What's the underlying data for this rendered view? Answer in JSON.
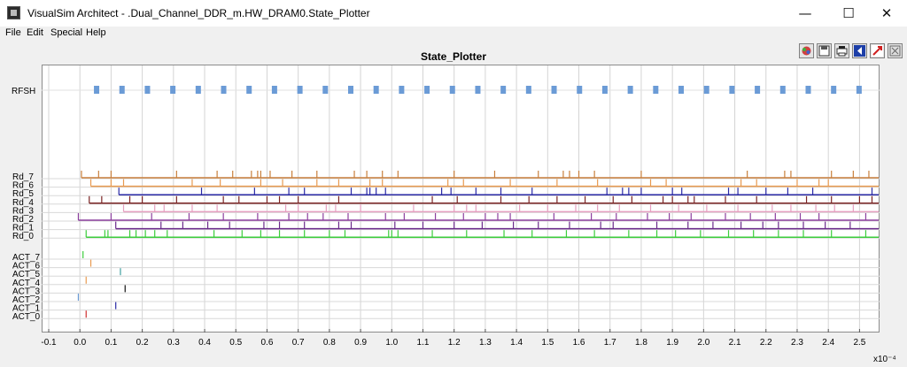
{
  "window": {
    "title": "VisualSim Architect - .Dual_Channel_DDR_m.HW_DRAM0.State_Plotter",
    "minimize": "—",
    "maximize": "☐",
    "close": "✕"
  },
  "menu": [
    "File",
    "Edit",
    "Special",
    "Help"
  ],
  "toolbar": {
    "buttons": [
      "palette-icon",
      "save-icon",
      "print-icon",
      "reset-axes-icon",
      "zoom-fit-icon",
      "fill-icon"
    ]
  },
  "plot": {
    "title": "State_Plotter",
    "exponent_label": "x10⁻⁴"
  },
  "chart_data": {
    "type": "event-plot",
    "title": "State_Plotter",
    "xlabel": "",
    "ylabel": "",
    "x_scale_label": "x10⁻⁴",
    "xlim": [
      -0.1,
      2.55
    ],
    "x_ticks": [
      "-0.1",
      "0.0",
      "0.1",
      "0.2",
      "0.3",
      "0.4",
      "0.5",
      "0.6",
      "0.7",
      "0.8",
      "0.9",
      "1.0",
      "1.1",
      "1.2",
      "1.3",
      "1.4",
      "1.5",
      "1.6",
      "1.7",
      "1.8",
      "1.9",
      "2.0",
      "2.1",
      "2.2",
      "2.3",
      "2.4",
      "2.5"
    ],
    "grid": true,
    "refresh": {
      "label": "RFSH",
      "color": "#6b9bd6",
      "start": 0.045,
      "period": 0.0815,
      "end": 2.54
    },
    "series": [
      {
        "label": "Rd_7",
        "color": "#c87f3c",
        "start": 0.005,
        "events": [
          0.005,
          0.06,
          0.1,
          0.31,
          0.44,
          0.49,
          0.55,
          0.57,
          0.58,
          0.61,
          0.68,
          0.76,
          0.88,
          0.92,
          0.97,
          1.02,
          1.2,
          1.33,
          1.47,
          1.55,
          1.57,
          1.6,
          1.65,
          1.8,
          2.14,
          2.26,
          2.28,
          2.41,
          2.48,
          2.53
        ]
      },
      {
        "label": "Rd_6",
        "color": "#e89a50",
        "start": 0.035,
        "events": [
          0.035,
          0.1,
          0.14,
          0.36,
          0.45,
          0.58,
          0.65,
          0.76,
          0.83,
          0.93,
          0.97,
          1.18,
          1.23,
          1.38,
          1.53,
          1.66,
          1.83,
          1.88,
          2.12,
          2.17,
          2.3,
          2.37,
          2.4
        ]
      },
      {
        "label": "Rd_5",
        "color": "#2a2aa6",
        "start": 0.125,
        "events": [
          0.125,
          0.39,
          0.56,
          0.67,
          0.72,
          0.87,
          0.92,
          0.93,
          0.95,
          0.98,
          1.16,
          1.19,
          1.27,
          1.35,
          1.45,
          1.69,
          1.74,
          1.76,
          1.8,
          1.9,
          1.93,
          2.08,
          2.11,
          2.2,
          2.27,
          2.35,
          2.54
        ]
      },
      {
        "label": "Rd_4",
        "color": "#7a2424",
        "start": 0.03,
        "events": [
          0.03,
          0.07,
          0.16,
          0.2,
          0.31,
          0.46,
          0.51,
          0.6,
          0.64,
          0.7,
          0.83,
          1.13,
          1.21,
          1.35,
          1.44,
          1.53,
          1.62,
          1.71,
          1.77,
          1.87,
          1.9,
          1.95,
          1.97,
          2.07,
          2.17,
          2.33,
          2.41,
          2.5,
          2.54
        ]
      },
      {
        "label": "Rd_3",
        "color": "#e6a0c0",
        "start": 0.14,
        "events": [
          0.14,
          0.24,
          0.27,
          0.36,
          0.44,
          0.66,
          0.7,
          0.79,
          0.82,
          0.9,
          1.07,
          1.2,
          1.24,
          1.27,
          1.41,
          1.5,
          1.59,
          1.66,
          1.73,
          1.83,
          1.92,
          2.01,
          2.11,
          2.22,
          2.28,
          2.36,
          2.42,
          2.48
        ]
      },
      {
        "label": "Rd_2",
        "color": "#8c3f9e",
        "start": -0.005,
        "events": [
          -0.005,
          0.1,
          0.23,
          0.35,
          0.46,
          0.57,
          0.67,
          0.73,
          0.78,
          0.86,
          0.98,
          1.04,
          1.14,
          1.23,
          1.3,
          1.34,
          1.38,
          1.52,
          1.64,
          1.72,
          1.82,
          1.89,
          1.96,
          2.07,
          2.15,
          2.23,
          2.31,
          2.37,
          2.52
        ]
      },
      {
        "label": "Rd_1",
        "color": "#6a2a8a",
        "start": 0.115,
        "events": [
          0.115,
          0.26,
          0.33,
          0.41,
          0.48,
          0.59,
          0.64,
          0.72,
          0.83,
          0.87,
          1.01,
          1.1,
          1.2,
          1.29,
          1.39,
          1.47,
          1.57,
          1.67,
          1.71,
          1.85,
          1.95,
          2.03,
          2.12,
          2.19,
          2.24,
          2.32,
          2.39,
          2.47
        ]
      },
      {
        "label": "Rd_0",
        "color": "#3ccd3c",
        "start": 0.02,
        "events": [
          0.02,
          0.08,
          0.09,
          0.16,
          0.18,
          0.21,
          0.24,
          0.28,
          0.43,
          0.52,
          0.58,
          0.64,
          0.72,
          0.8,
          0.85,
          0.99,
          1.0,
          1.02,
          1.13,
          1.24,
          1.36,
          1.45,
          1.56,
          1.65,
          1.76,
          1.85,
          1.91,
          1.99,
          2.08,
          2.16,
          2.24,
          2.32,
          2.41,
          2.52
        ]
      },
      {
        "label": "ACT_7",
        "color": "#3ccd3c",
        "start": 0.01,
        "events": [
          0.01
        ]
      },
      {
        "label": "ACT_6",
        "color": "#e89a50",
        "start": 0.035,
        "events": [
          0.035
        ]
      },
      {
        "label": "ACT_5",
        "color": "#40a0a0",
        "start": 0.13,
        "events": [
          0.13
        ]
      },
      {
        "label": "ACT_4",
        "color": "#e89a50",
        "start": 0.02,
        "events": [
          0.02
        ]
      },
      {
        "label": "ACT_3",
        "color": "#111111",
        "start": 0.145,
        "events": [
          0.145
        ]
      },
      {
        "label": "ACT_2",
        "color": "#6b9bd6",
        "start": -0.005,
        "events": [
          -0.005
        ]
      },
      {
        "label": "ACT_1",
        "color": "#2a2aa6",
        "start": 0.115,
        "events": [
          0.115
        ]
      },
      {
        "label": "ACT_0",
        "color": "#d03030",
        "start": 0.02,
        "events": [
          0.02
        ]
      }
    ]
  }
}
